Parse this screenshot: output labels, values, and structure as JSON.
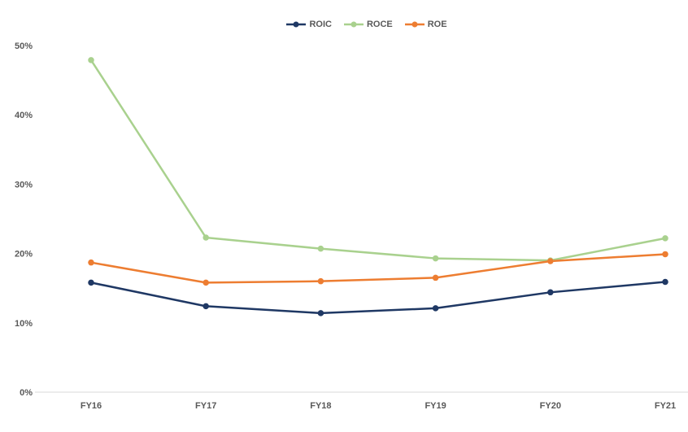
{
  "chart_data": {
    "type": "line",
    "title": "",
    "xlabel": "",
    "ylabel": "",
    "categories": [
      "FY16",
      "FY17",
      "FY18",
      "FY19",
      "FY20",
      "FY21"
    ],
    "series": [
      {
        "name": "ROIC",
        "color": "#1F3864",
        "marker": "circle",
        "values": [
          15.8,
          12.4,
          11.4,
          12.1,
          14.4,
          15.9
        ]
      },
      {
        "name": "ROCE",
        "color": "#A9D18E",
        "marker": "circle",
        "values": [
          47.9,
          22.3,
          20.7,
          19.3,
          19.0,
          22.2
        ]
      },
      {
        "name": "ROE",
        "color": "#ED7D31",
        "marker": "circle",
        "values": [
          18.7,
          15.8,
          16.0,
          16.5,
          18.9,
          19.9
        ]
      }
    ],
    "ylim": [
      0,
      50
    ],
    "ytick_step": 10,
    "ytick_labels": [
      "0%",
      "10%",
      "20%",
      "30%",
      "40%",
      "50%"
    ],
    "grid": false,
    "baseline_only": true,
    "legend_position": "top-center",
    "legend_marker_icon": "line-with-dot-icon",
    "colors": {
      "axis_line": "#D9D9D9",
      "tick_label": "#595959",
      "legend_label": "#595959",
      "background": "#FFFFFF"
    }
  }
}
